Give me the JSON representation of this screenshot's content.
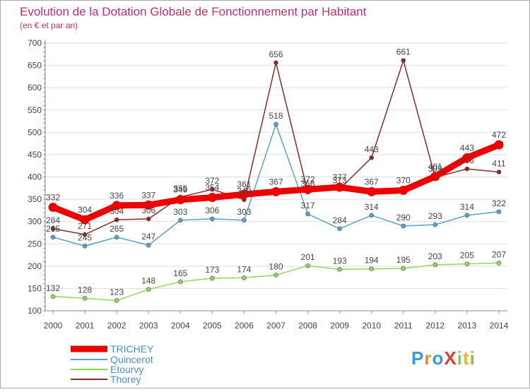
{
  "chart_data": {
    "type": "line",
    "title": "Evolution de la Dotation Globale de Fonctionnement par Habitant",
    "subtitle": "(en € et par an)",
    "xlabel": "",
    "ylabel": "",
    "categories": [
      "2000",
      "2001",
      "2002",
      "2003",
      "2004",
      "2005",
      "2006",
      "2007",
      "2008",
      "2009",
      "2010",
      "2011",
      "2012",
      "2013",
      "2014"
    ],
    "ylim": [
      100,
      700
    ],
    "yticks": [
      100,
      150,
      200,
      250,
      300,
      350,
      400,
      450,
      500,
      550,
      600,
      650,
      700
    ],
    "legend_position": "bottom-left",
    "series": [
      {
        "name": "Thorey",
        "color": "#8b2a2a",
        "values": [
          284,
          271,
          304,
          306,
          355,
          372,
          349,
          656,
          366,
          373,
          443,
          661,
          399,
          418,
          411
        ],
        "labels": [
          "284",
          "271",
          "304",
          "306",
          "355",
          "372",
          "349",
          "656",
          "366",
          "373",
          "443",
          "661",
          "399",
          "418",
          "411"
        ]
      },
      {
        "name": "Quincerot",
        "color": "#5aa0d0",
        "values": [
          265,
          245,
          265,
          247,
          303,
          306,
          303,
          518,
          317,
          284,
          314,
          290,
          293,
          314,
          322
        ],
        "labels": [
          "265",
          "245",
          "265",
          "247",
          "303",
          "306",
          "303",
          "518",
          "317",
          "284",
          "314",
          "290",
          "293",
          "314",
          "322"
        ]
      },
      {
        "name": "Etourvy",
        "color": "#8fd65a",
        "values": [
          132,
          128,
          123,
          148,
          165,
          173,
          174,
          180,
          201,
          193,
          194,
          195,
          203,
          205,
          207
        ],
        "labels": [
          "132",
          "128",
          "123",
          "148",
          "165",
          "173",
          "174",
          "180",
          "201",
          "193",
          "194",
          "195",
          "203",
          "205",
          "207"
        ]
      },
      {
        "name": "TRICHEY",
        "color": "#ee0000",
        "values": [
          332,
          304,
          336,
          337,
          349,
          354,
          361,
          367,
          372,
          377,
          367,
          370,
          401,
          443,
          472
        ],
        "labels": [
          "332",
          "304",
          "336",
          "337",
          "349",
          "354",
          "361",
          "367",
          "372",
          "377",
          "367",
          "370",
          "401",
          "443",
          "472"
        ]
      }
    ],
    "legend": [
      "TRICHEY",
      "Quincerot",
      "Etourvy",
      "Thorey"
    ]
  },
  "colors": {
    "title": "#c0306a",
    "axis_text": "#444444",
    "grid": "#dddddd",
    "frame": "#aaaaaa"
  },
  "logo": {
    "text": "ProXiti"
  }
}
